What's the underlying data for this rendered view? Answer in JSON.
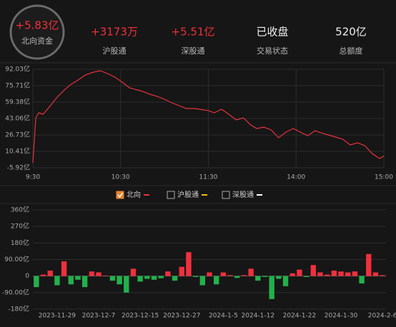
{
  "header": {
    "main": {
      "value": "+5.83亿",
      "label": "北向资金"
    },
    "stats": [
      {
        "value": "+3173万",
        "label": "沪股通"
      },
      {
        "value": "+5.51亿",
        "label": "深股通"
      },
      {
        "value": "已收盘",
        "label": "交易状态"
      },
      {
        "value": "520亿",
        "label": "总额度"
      }
    ]
  },
  "chart_data": [
    {
      "type": "line",
      "grid": true,
      "xlim": [
        0,
        240
      ],
      "xticks": [
        {
          "value": 0,
          "label": "9:30"
        },
        {
          "value": 60,
          "label": "10:30"
        },
        {
          "value": 120,
          "label": "11:30"
        },
        {
          "value": 180,
          "label": "14:00"
        },
        {
          "value": 240,
          "label": "15:00"
        }
      ],
      "ylim": [
        -5.92,
        92.03
      ],
      "yticks": [
        {
          "value": 92.03,
          "label": "92.03亿"
        },
        {
          "value": 75.71,
          "label": "75.71亿"
        },
        {
          "value": 59.38,
          "label": "59.38亿"
        },
        {
          "value": 43.06,
          "label": "43.06亿"
        },
        {
          "value": 26.73,
          "label": "26.73亿"
        },
        {
          "value": 10.41,
          "label": "10.41亿"
        },
        {
          "value": -5.92,
          "label": "-5.92亿"
        }
      ],
      "x": [
        0,
        2,
        4,
        7,
        12,
        17,
        22,
        26,
        31,
        36,
        41,
        46,
        51,
        56,
        61,
        66,
        70,
        75,
        80,
        85,
        90,
        95,
        100,
        105,
        110,
        114,
        120,
        124,
        129,
        134,
        139,
        144,
        149,
        153,
        158,
        163,
        168,
        173,
        178,
        183,
        188,
        193,
        197,
        202,
        207,
        212,
        217,
        222,
        227,
        232,
        237,
        240
      ],
      "series": [
        {
          "name": "北向",
          "color": "#e8323c",
          "checked": true,
          "values": [
            -1,
            43.8,
            48.7,
            47.3,
            55.8,
            65,
            72,
            77,
            81.4,
            86.4,
            89,
            90.6,
            87.8,
            84.2,
            79.3,
            73.6,
            72,
            70,
            67.2,
            65,
            62.2,
            58.7,
            55.8,
            53,
            53,
            52.3,
            50.9,
            48.7,
            52.3,
            47.3,
            41.6,
            43.8,
            36.7,
            33.1,
            34.5,
            31.7,
            23.9,
            29.5,
            33.1,
            29.5,
            26,
            31,
            28.9,
            26.7,
            24.6,
            22.5,
            16.8,
            18.9,
            16.1,
            8.3,
            3.3,
            5.83
          ]
        },
        {
          "name": "沪股通",
          "color": "#f0c000",
          "checked": false
        },
        {
          "name": "深股通",
          "color": "#ffffff",
          "checked": false
        }
      ]
    },
    {
      "type": "bar",
      "grid": true,
      "up_color": "#f0303c",
      "down_color": "#22b14c",
      "ylim": [
        -180,
        360
      ],
      "yticks": [
        {
          "value": 360,
          "label": "360亿"
        },
        {
          "value": 270,
          "label": "270亿"
        },
        {
          "value": 180,
          "label": "180亿"
        },
        {
          "value": 90,
          "label": "90.00亿"
        },
        0,
        {
          "value": -90,
          "label": "-90.00亿"
        },
        {
          "value": -180,
          "label": "-180亿"
        }
      ],
      "categories": [
        null,
        null,
        null,
        "2023-11-29",
        null,
        null,
        null,
        null,
        null,
        "2023-12-7",
        null,
        null,
        null,
        null,
        null,
        "2023-12-15",
        null,
        null,
        null,
        null,
        null,
        "2023-12-27",
        null,
        null,
        null,
        null,
        null,
        "2024-1-5",
        null,
        null,
        null,
        null,
        "2024-1-12",
        null,
        null,
        null,
        null,
        null,
        "2024-1-22",
        null,
        null,
        null,
        null,
        null,
        "2024-1-30",
        null,
        null,
        null,
        null,
        null,
        "2024-2-6"
      ],
      "values": [
        -60,
        8,
        30,
        -50,
        80,
        -45,
        -20,
        -60,
        25,
        20,
        3,
        -25,
        -45,
        -90,
        40,
        -30,
        -15,
        -20,
        -12,
        25,
        -25,
        50,
        130,
        -5,
        -50,
        20,
        -45,
        20,
        5,
        -10,
        5,
        40,
        -25,
        -5,
        -125,
        -15,
        -55,
        15,
        35,
        -5,
        60,
        20,
        8,
        30,
        25,
        20,
        25,
        -40,
        120,
        20,
        5
      ]
    }
  ]
}
